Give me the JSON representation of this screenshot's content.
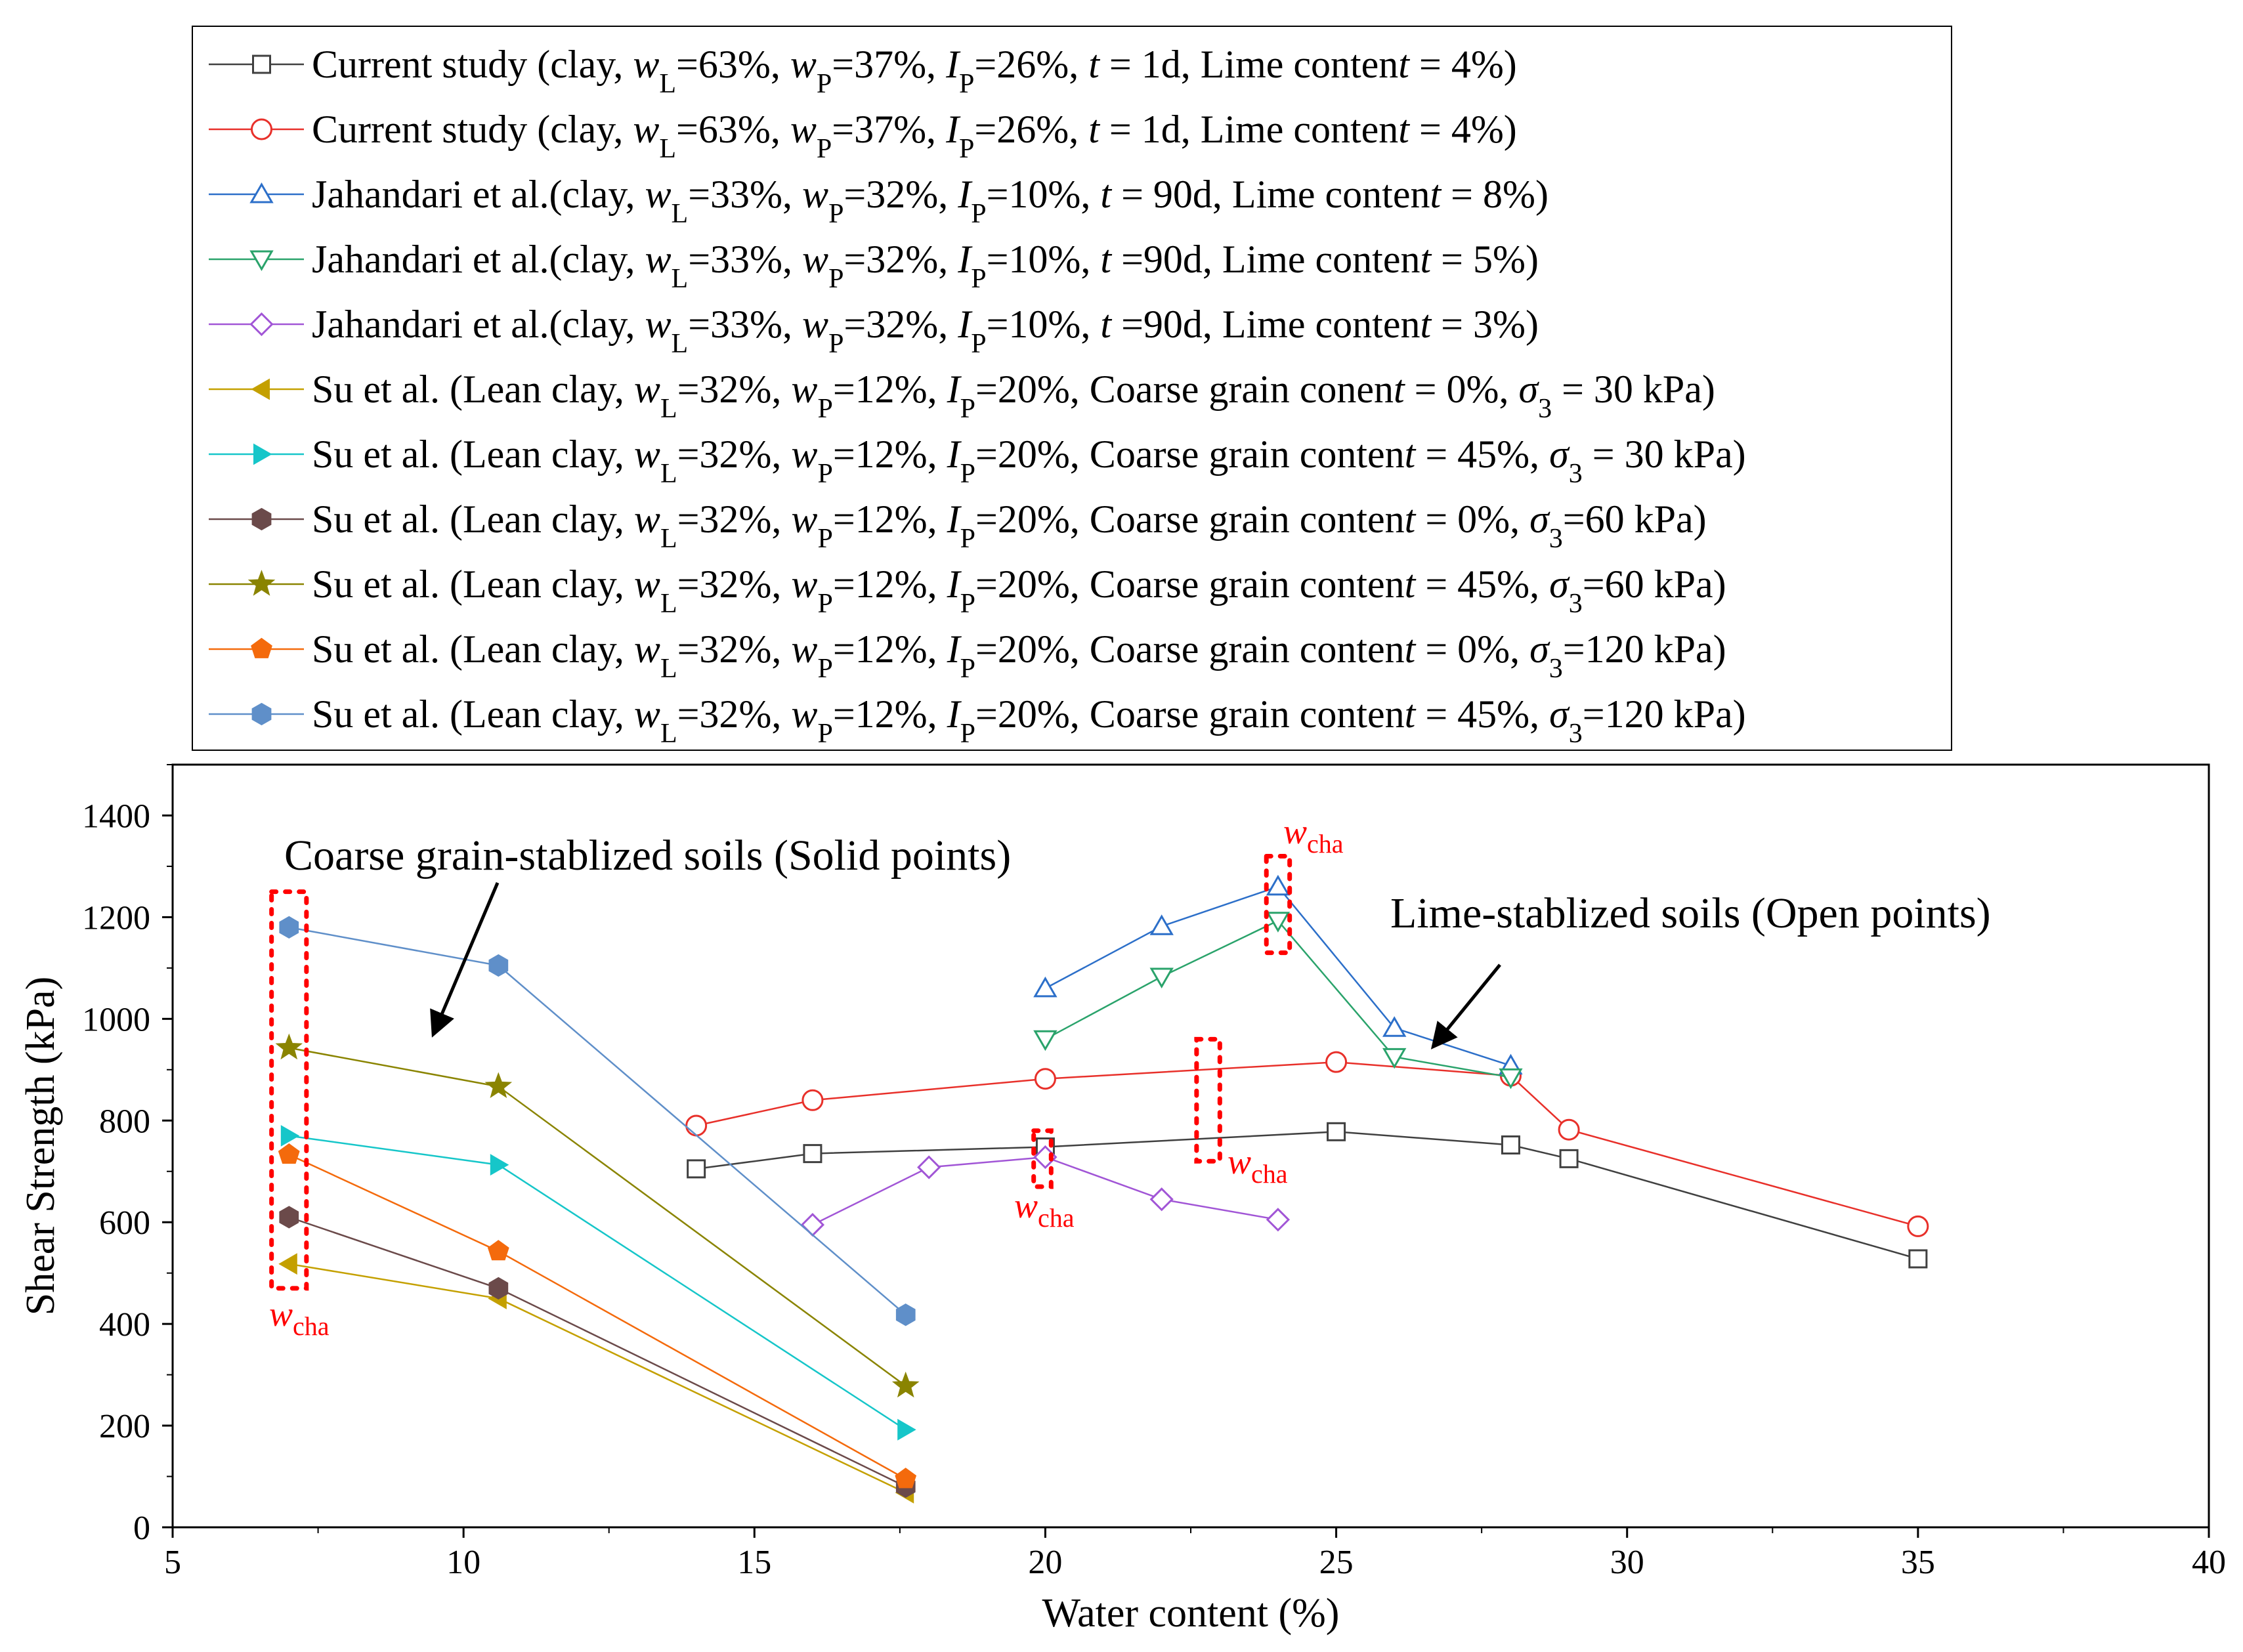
{
  "chart_data": {
    "type": "line",
    "xlabel": "Water content (%)",
    "ylabel": "Shear Strength (kPa)",
    "xlim": [
      5,
      40
    ],
    "ylim": [
      0,
      1500
    ],
    "x_ticks": [
      5,
      10,
      15,
      20,
      25,
      30,
      35,
      40
    ],
    "x_tick_labels": [
      "5",
      "10",
      "15",
      "20",
      "25",
      "30",
      "35",
      "40"
    ],
    "y_ticks": [
      0,
      200,
      400,
      600,
      800,
      1000,
      1200,
      1400
    ],
    "y_tick_labels": [
      "0",
      "200",
      "400",
      "600",
      "800",
      "1000",
      "1200",
      "1400"
    ],
    "grid": false,
    "legend_placement": "top (outside plot)",
    "series": [
      {
        "name": "Current study  (clay, wL=63%, wP=37%, IP=26%, t = 1d, Lime content = 4%)",
        "color": "#404040",
        "marker": "square",
        "filled": false,
        "x": [
          14,
          16,
          20,
          25,
          28,
          29,
          35
        ],
        "y": [
          705,
          735,
          748,
          778,
          752,
          725,
          528
        ]
      },
      {
        "name": "Current study  (clay, wL=63%, wP=37%, IP=26%, t = 1d, Lime content = 4%)",
        "color": "#e8302a",
        "marker": "circle",
        "filled": false,
        "x": [
          14,
          16,
          20,
          25,
          28,
          29,
          35
        ],
        "y": [
          790,
          840,
          882,
          915,
          888,
          782,
          592
        ]
      },
      {
        "name": "Jahandari et al.(clay, wL=33%, wP=32%, IP=10%, t = 90d, Lime content = 8%)",
        "color": "#2c6fc9",
        "marker": "triangle-up",
        "filled": false,
        "x": [
          20,
          22,
          24,
          26,
          28
        ],
        "y": [
          1060,
          1182,
          1260,
          982,
          908
        ]
      },
      {
        "name": "Jahandari et al.(clay, wL=33%, wP=32%, IP=10%, t =90d, Lime content = 5%)",
        "color": "#2aa36b",
        "marker": "triangle-down",
        "filled": false,
        "x": [
          20,
          22,
          24,
          26,
          28
        ],
        "y": [
          960,
          1083,
          1193,
          925,
          885
        ]
      },
      {
        "name": "Jahandari et al.(clay, wL=33%, wP=32%, IP=10%, t =90d, Lime content = 3%)",
        "color": "#a155d6",
        "marker": "diamond",
        "filled": false,
        "x": [
          16,
          18,
          20,
          22,
          24
        ],
        "y": [
          595,
          708,
          728,
          645,
          605
        ]
      },
      {
        "name": "Su et al.  (Lean clay, wL=32%, wP=12%, IP=20%,  Coarse grain conent = 0%, σ3 = 30 kPa)",
        "color": "#c4a000",
        "marker": "triangle-left",
        "filled": true,
        "x": [
          7,
          10.6,
          17.6
        ],
        "y": [
          518,
          450,
          68
        ]
      },
      {
        "name": "Su et al.  (Lean clay, wL=32%, wP=12%, IP=20%, Coarse grain content = 45%, σ3 = 30 kPa)",
        "color": "#16c6c9",
        "marker": "triangle-right",
        "filled": true,
        "x": [
          7,
          10.6,
          17.6
        ],
        "y": [
          770,
          713,
          192
        ]
      },
      {
        "name": "Su et al.  (Lean clay, wL=32%, wP=12%, IP=20%, Coarse grain content = 0%, σ3=60 kPa)",
        "color": "#6b4a4a",
        "marker": "hexagon",
        "filled": true,
        "x": [
          7,
          10.6,
          17.6
        ],
        "y": [
          610,
          470,
          80
        ]
      },
      {
        "name": "Su et al.  (Lean clay, wL=32%, wP=12%, IP=20%, Coarse grain content = 45%, σ3=60 kPa)",
        "color": "#8a8400",
        "marker": "star",
        "filled": true,
        "x": [
          7,
          10.6,
          17.6
        ],
        "y": [
          943,
          867,
          278
        ]
      },
      {
        "name": "Su et al.  (Lean clay, wL=32%, wP=12%, IP=20%, Coarse grain content = 0%, σ3=120 kPa)",
        "color": "#f46a0c",
        "marker": "pentagon",
        "filled": true,
        "x": [
          7,
          10.6,
          17.6
        ],
        "y": [
          733,
          543,
          95
        ]
      },
      {
        "name": "Su et al.  (Lean clay, wL=32%, wP=12%, IP=20%, Coarse grain content = 45%, σ3=120 kPa)",
        "color": "#5f8fc9",
        "marker": "hexagon",
        "filled": true,
        "x": [
          7,
          10.6,
          17.6
        ],
        "y": [
          1180,
          1105,
          418
        ]
      }
    ],
    "annotations": [
      {
        "text": "Coarse grain-stablized soils (Solid points)",
        "arrow_to": [
          9.5,
          975
        ]
      },
      {
        "text": "Lime-stablized soils (Open points)",
        "arrow_to": [
          26.7,
          950
        ]
      }
    ],
    "wcha_markers": [
      {
        "label": "w",
        "subscript": "cha",
        "x_range": [
          6.7,
          7.3
        ],
        "y_range": [
          470,
          1250
        ]
      },
      {
        "label": "w",
        "subscript": "cha",
        "x_range": [
          23.8,
          24.2
        ],
        "y_range": [
          1130,
          1320
        ]
      },
      {
        "label": "w",
        "subscript": "cha",
        "x_range": [
          19.8,
          20.1
        ],
        "y_range": [
          670,
          780
        ]
      },
      {
        "label": "w",
        "subscript": "cha",
        "x_range": [
          22.6,
          23.0
        ],
        "y_range": [
          720,
          960
        ]
      }
    ]
  }
}
